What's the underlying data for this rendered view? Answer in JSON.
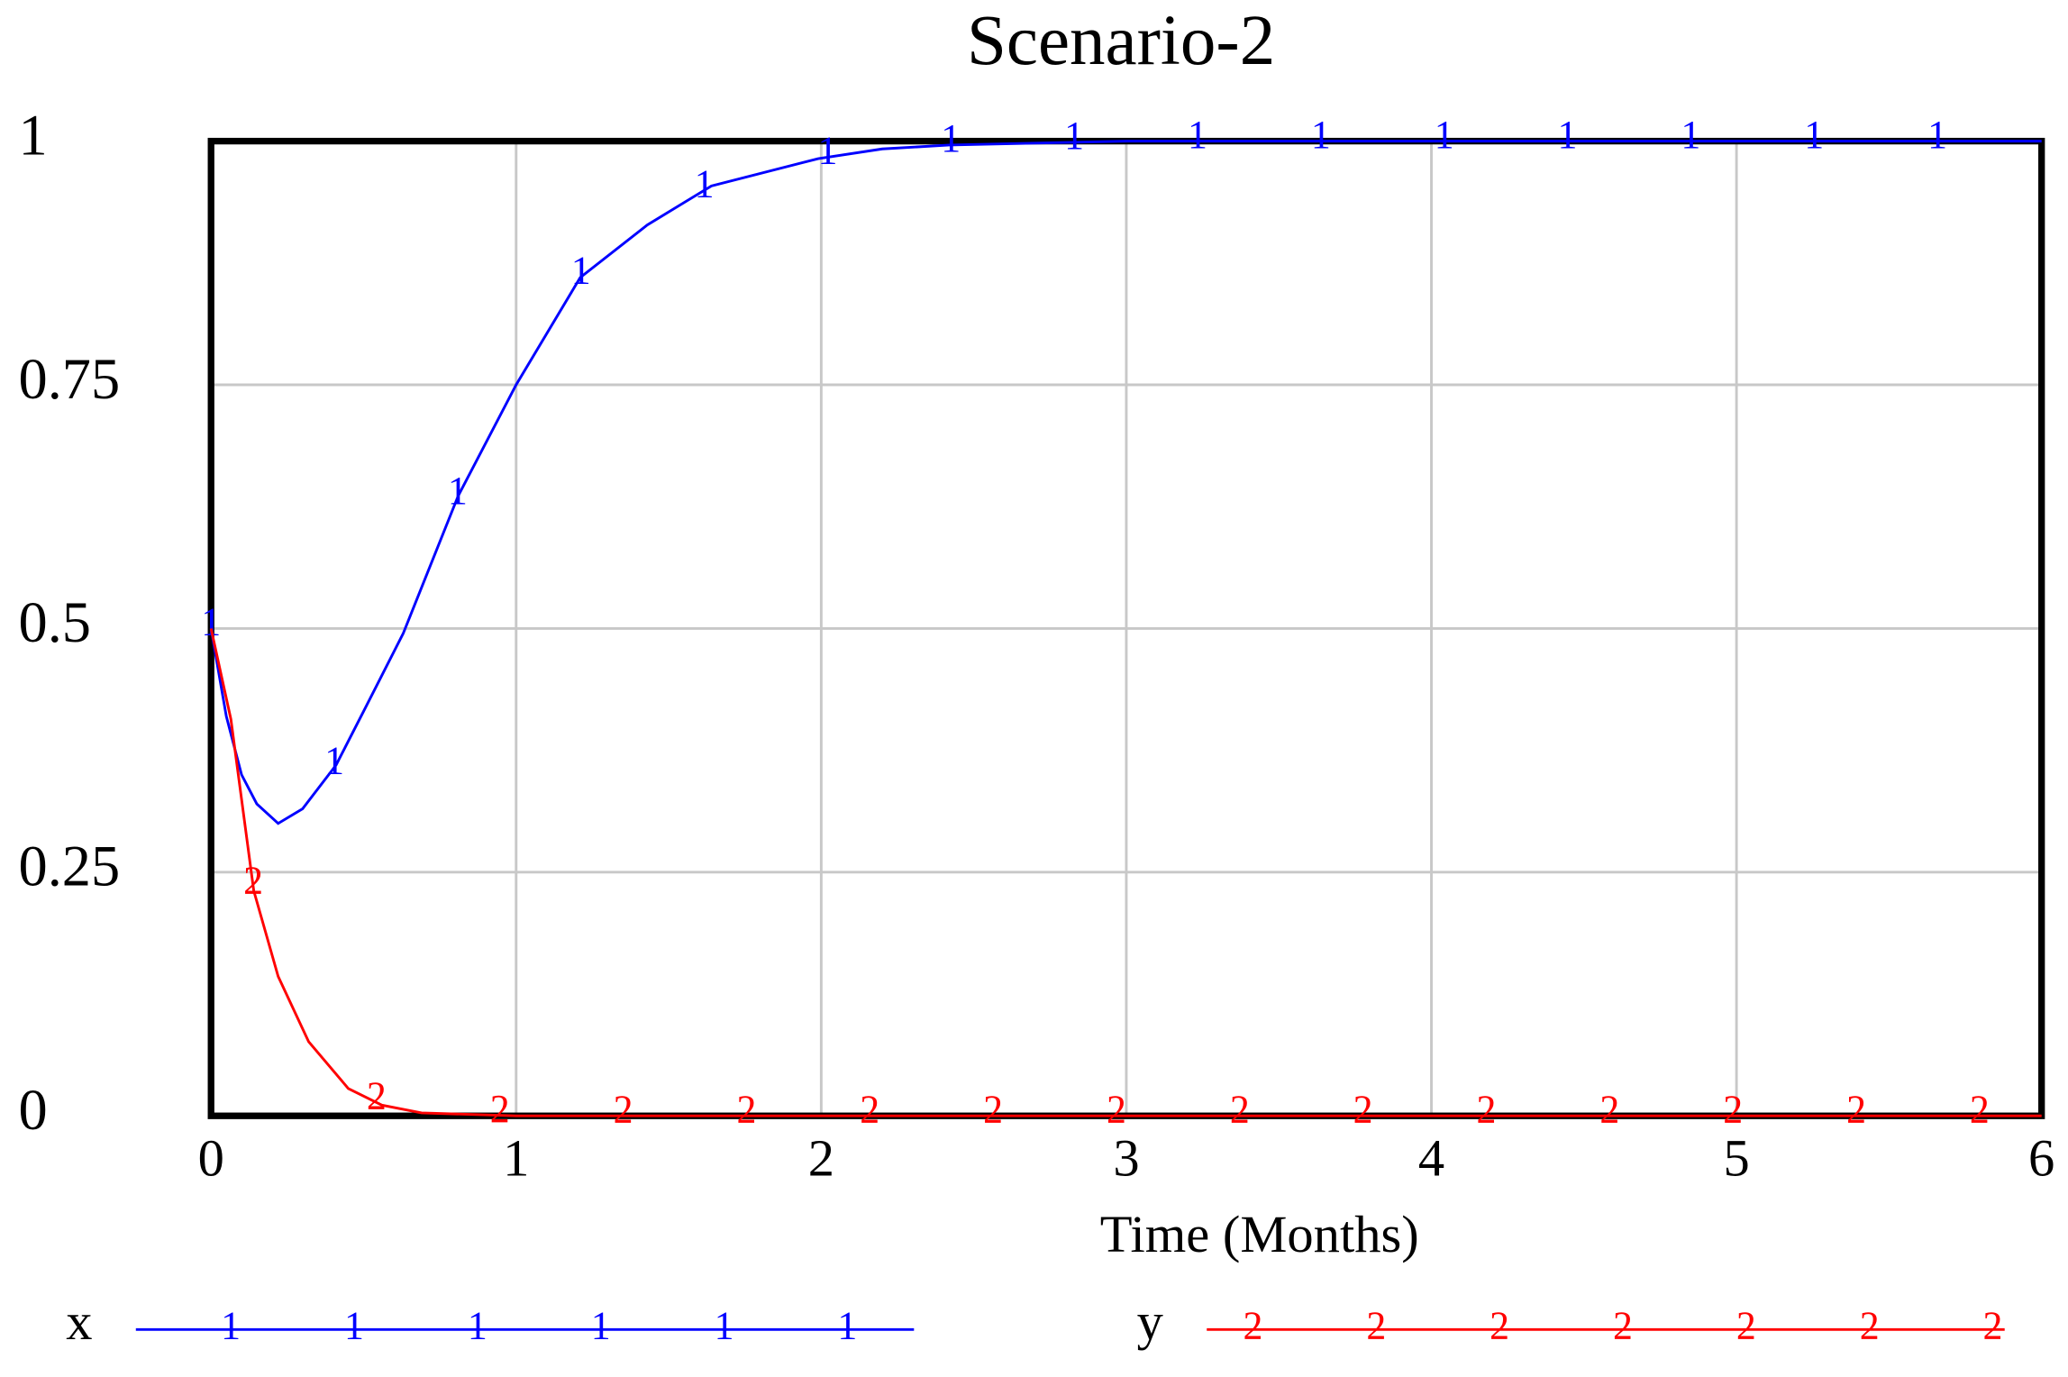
{
  "chart_data": {
    "type": "line",
    "title": "Scenario-2",
    "x_label": "Time (Months)",
    "xlim": [
      0,
      6
    ],
    "xticks": [
      0,
      1,
      2,
      3,
      4,
      5,
      6
    ],
    "ylim": [
      0,
      1
    ],
    "yticks": [
      0,
      0.25,
      0.5,
      0.75,
      1
    ],
    "grid": true,
    "series": [
      {
        "name": "x",
        "marker": "1",
        "color": "#0000ff",
        "x": [
          0,
          0.05,
          0.1,
          0.15,
          0.22,
          0.3,
          0.41,
          0.5,
          0.63,
          0.81,
          1.0,
          1.21,
          1.43,
          1.64,
          1.99,
          2.2,
          2.42,
          3,
          4,
          5,
          6
        ],
        "values": [
          0.5,
          0.41,
          0.35,
          0.32,
          0.3,
          0.315,
          0.36,
          0.415,
          0.495,
          0.636,
          0.75,
          0.86,
          0.914,
          0.954,
          0.982,
          0.992,
          0.996,
          1,
          1,
          1,
          1
        ]
      },
      {
        "name": "y",
        "marker": "2",
        "color": "#ff0000",
        "x": [
          0,
          0.065,
          0.14,
          0.22,
          0.32,
          0.45,
          0.56,
          0.69,
          1,
          2,
          3,
          4,
          5,
          6
        ],
        "values": [
          0.5,
          0.407,
          0.231,
          0.143,
          0.076,
          0.028,
          0.011,
          0.003,
          0,
          0,
          0,
          0,
          0,
          0
        ]
      }
    ]
  }
}
